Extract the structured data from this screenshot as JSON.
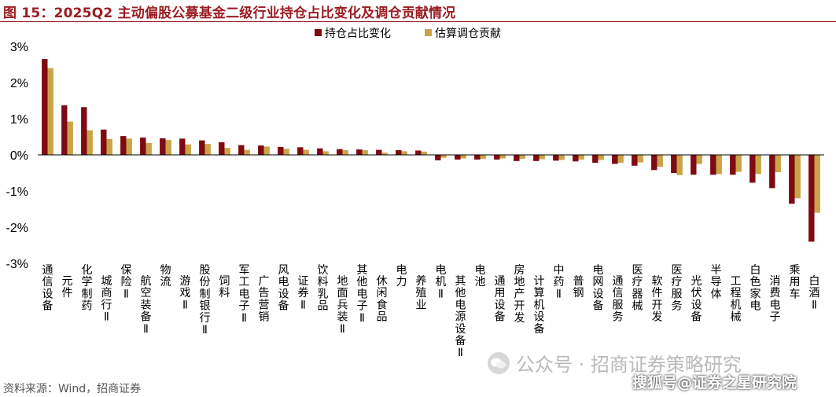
{
  "title": "图 15：2025Q2 主动偏股公募基金二级行业持仓占比变化及调仓贡献情况",
  "source": "资料来源：Wind，招商证券",
  "watermarks": {
    "wechat": "公众号 · 招商证券策略研究",
    "sohu": "搜狐号@证券之星研究院"
  },
  "colors": {
    "series1": "#7f0a12",
    "series2": "#c9a449",
    "title": "#9b1c22"
  },
  "chart_data": {
    "type": "bar",
    "ylim": [
      -3,
      3
    ],
    "yticks": [
      "-3%",
      "-2%",
      "-1%",
      "0%",
      "1%",
      "2%",
      "3%"
    ],
    "ytick_values": [
      -3,
      -2,
      -1,
      0,
      1,
      2,
      3
    ],
    "legend_position": "top-center",
    "grid": false,
    "categories": [
      "通信设备",
      "元件",
      "化学制药",
      "城商行Ⅱ",
      "保险Ⅱ",
      "航空装备Ⅱ",
      "物流",
      "游戏Ⅱ",
      "股份制银行Ⅱ",
      "饲料",
      "军工电子Ⅱ",
      "广告营销",
      "风电设备",
      "证券Ⅱ",
      "饮料乳品",
      "地面兵装Ⅱ",
      "其他电子Ⅱ",
      "休闲食品",
      "电力",
      "养殖业",
      "电机Ⅱ",
      "其他电源设备Ⅱ",
      "电池",
      "通用设备",
      "房地产开发",
      "计算机设备",
      "中药Ⅱ",
      "普钢",
      "电网设备",
      "通信服务",
      "医疗器械",
      "软件开发",
      "医疗服务",
      "光伏设备",
      "半导体",
      "工程机械",
      "白色家电",
      "消费电子",
      "乘用车",
      "白酒Ⅱ"
    ],
    "series": [
      {
        "name": "持仓占比变化",
        "values": [
          2.65,
          1.37,
          1.32,
          0.7,
          0.52,
          0.48,
          0.46,
          0.45,
          0.4,
          0.35,
          0.27,
          0.26,
          0.22,
          0.21,
          0.18,
          0.16,
          0.15,
          0.14,
          0.13,
          0.12,
          -0.15,
          -0.13,
          -0.13,
          -0.13,
          -0.17,
          -0.17,
          -0.16,
          -0.18,
          -0.22,
          -0.25,
          -0.3,
          -0.42,
          -0.5,
          -0.55,
          -0.55,
          -0.55,
          -0.77,
          -0.92,
          -1.35,
          -2.4
        ]
      },
      {
        "name": "估算调仓贡献",
        "values": [
          2.4,
          0.92,
          0.68,
          0.44,
          0.45,
          0.33,
          0.41,
          0.29,
          0.3,
          0.19,
          0.14,
          0.23,
          0.17,
          0.14,
          0.1,
          0.13,
          0.13,
          0.06,
          0.1,
          0.09,
          -0.08,
          -0.1,
          -0.11,
          -0.1,
          -0.11,
          -0.12,
          -0.14,
          -0.13,
          -0.14,
          -0.22,
          -0.21,
          -0.33,
          -0.56,
          -0.25,
          -0.53,
          -0.47,
          -0.53,
          -0.48,
          -1.2,
          -1.6
        ]
      }
    ]
  }
}
